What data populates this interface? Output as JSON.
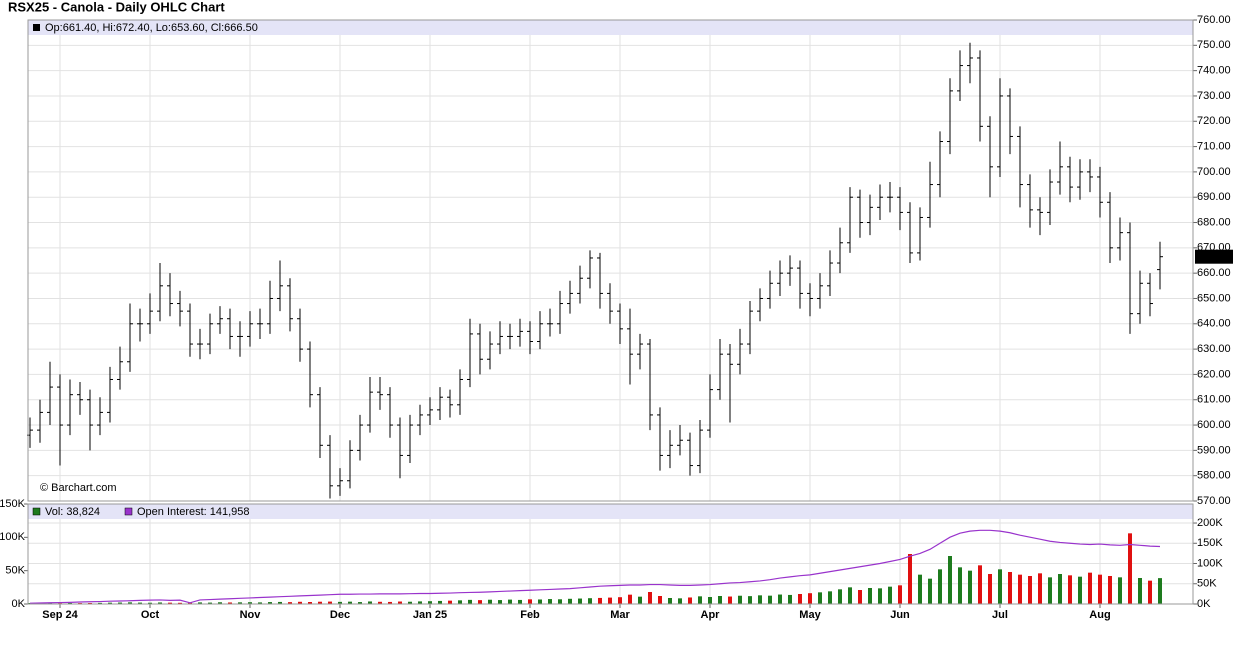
{
  "chart_data": [
    {
      "type": "ohlc",
      "title": "RSX25 - Canola - Daily OHLC Chart",
      "legend_text": "Op:661.40, Hi:672.40, Lo:653.60, Cl:666.50",
      "watermark": "© Barchart.com",
      "last_label": "666.50",
      "color": "#000000",
      "open": [
        596,
        598,
        605,
        615,
        600,
        612,
        610,
        600,
        605,
        618,
        625,
        640,
        640,
        645,
        655,
        648,
        645,
        632,
        632,
        640,
        642,
        635,
        635,
        640,
        640,
        650,
        655,
        642,
        630,
        612,
        592,
        576,
        578,
        590,
        600,
        613,
        612,
        600,
        588,
        600,
        604,
        606,
        611,
        608,
        618,
        636,
        626,
        632,
        635,
        635,
        637,
        633,
        640,
        640,
        648,
        652,
        658,
        666,
        652,
        645,
        638,
        628,
        632,
        604,
        588,
        592,
        594,
        584,
        598,
        614,
        628,
        624,
        632,
        645,
        650,
        656,
        660,
        662,
        652,
        650,
        655,
        664,
        672,
        690,
        680,
        686,
        690,
        690,
        684,
        668,
        682,
        695,
        712,
        732,
        742,
        745,
        718,
        702,
        730,
        714,
        695,
        685,
        684,
        696,
        702,
        694,
        700,
        698,
        688,
        670,
        676,
        644,
        656,
        661.4
      ],
      "high": [
        603,
        610,
        625,
        620,
        618,
        617,
        614,
        611,
        623,
        631,
        648,
        646,
        652,
        664,
        660,
        653,
        648,
        638,
        644,
        647,
        646,
        641,
        645,
        646,
        657,
        665,
        658,
        646,
        633,
        615,
        596,
        583,
        594,
        604,
        619,
        619,
        615,
        603,
        604,
        608,
        611,
        615,
        614,
        622,
        642,
        640,
        637,
        641,
        640,
        642,
        641,
        645,
        646,
        653,
        657,
        663,
        669,
        668,
        656,
        648,
        646,
        636,
        634,
        607,
        598,
        600,
        597,
        602,
        620,
        634,
        632,
        638,
        649,
        654,
        661,
        665,
        667,
        665,
        656,
        660,
        669,
        678,
        694,
        693,
        691,
        695,
        696,
        694,
        688,
        686,
        704,
        716,
        737,
        748,
        751,
        748,
        722,
        737,
        733,
        718,
        699,
        690,
        701,
        712,
        706,
        705,
        705,
        702,
        692,
        682,
        680,
        661,
        660,
        672.4
      ],
      "low": [
        591,
        593,
        600,
        584,
        596,
        604,
        590,
        596,
        601,
        614,
        621,
        633,
        636,
        641,
        643,
        639,
        627,
        626,
        628,
        636,
        630,
        627,
        631,
        634,
        636,
        645,
        637,
        625,
        607,
        587,
        571,
        572,
        575,
        586,
        597,
        606,
        595,
        579,
        585,
        596,
        600,
        602,
        603,
        604,
        615,
        620,
        622,
        628,
        630,
        631,
        628,
        630,
        635,
        636,
        644,
        648,
        654,
        646,
        640,
        632,
        616,
        622,
        598,
        582,
        583,
        588,
        580,
        581,
        595,
        610,
        601,
        620,
        628,
        641,
        646,
        651,
        655,
        646,
        643,
        646,
        651,
        660,
        668,
        674,
        675,
        681,
        684,
        677,
        664,
        665,
        678,
        690,
        707,
        728,
        735,
        712,
        690,
        698,
        707,
        686,
        678,
        675,
        679,
        691,
        688,
        689,
        692,
        682,
        664,
        665,
        636,
        640,
        643,
        653.6
      ],
      "close": [
        598,
        605,
        615,
        600,
        612,
        610,
        600,
        605,
        618,
        625,
        640,
        640,
        645,
        655,
        648,
        645,
        632,
        632,
        640,
        642,
        635,
        635,
        640,
        640,
        650,
        655,
        642,
        630,
        612,
        592,
        576,
        578,
        590,
        600,
        613,
        612,
        600,
        588,
        600,
        604,
        606,
        611,
        608,
        618,
        636,
        626,
        632,
        635,
        635,
        637,
        633,
        640,
        640,
        648,
        652,
        658,
        666,
        652,
        645,
        638,
        628,
        632,
        604,
        588,
        592,
        594,
        584,
        598,
        614,
        628,
        624,
        632,
        645,
        650,
        656,
        660,
        662,
        652,
        650,
        655,
        664,
        672,
        690,
        680,
        686,
        690,
        690,
        684,
        668,
        682,
        695,
        712,
        732,
        742,
        745,
        718,
        702,
        730,
        714,
        695,
        685,
        684,
        696,
        702,
        694,
        700,
        698,
        688,
        670,
        676,
        644,
        656,
        648,
        666.5
      ],
      "ylim": [
        570,
        760
      ],
      "yticks": [
        {
          "value": 570,
          "label": "570.00"
        },
        {
          "value": 580,
          "label": "580.00"
        },
        {
          "value": 590,
          "label": "590.00"
        },
        {
          "value": 600,
          "label": "600.00"
        },
        {
          "value": 610,
          "label": "610.00"
        },
        {
          "value": 620,
          "label": "620.00"
        },
        {
          "value": 630,
          "label": "630.00"
        },
        {
          "value": 640,
          "label": "640.00"
        },
        {
          "value": 650,
          "label": "650.00"
        },
        {
          "value": 660,
          "label": "660.00"
        },
        {
          "value": 670,
          "label": "670.00"
        },
        {
          "value": 680,
          "label": "680.00"
        },
        {
          "value": 690,
          "label": "690.00"
        },
        {
          "value": 700,
          "label": "700.00"
        },
        {
          "value": 710,
          "label": "710.00"
        },
        {
          "value": 720,
          "label": "720.00"
        },
        {
          "value": 730,
          "label": "730.00"
        },
        {
          "value": 740,
          "label": "740.00"
        },
        {
          "value": 750,
          "label": "750.00"
        },
        {
          "value": 760,
          "label": "760.00"
        }
      ],
      "grid": true
    },
    {
      "type": "volume",
      "categories": [
        null,
        null,
        null,
        "Sep 24",
        null,
        null,
        null,
        null,
        null,
        null,
        null,
        null,
        "Oct",
        null,
        null,
        null,
        null,
        null,
        null,
        null,
        null,
        null,
        "Nov",
        null,
        null,
        null,
        null,
        null,
        null,
        null,
        null,
        "Dec",
        null,
        null,
        null,
        null,
        null,
        null,
        null,
        null,
        "Jan 25",
        null,
        null,
        null,
        null,
        null,
        null,
        null,
        null,
        null,
        "Feb",
        null,
        null,
        null,
        null,
        null,
        null,
        null,
        null,
        "Mar",
        null,
        null,
        null,
        null,
        null,
        null,
        null,
        null,
        "Apr",
        null,
        null,
        null,
        null,
        null,
        null,
        null,
        null,
        null,
        "May",
        null,
        null,
        null,
        null,
        null,
        null,
        null,
        null,
        "Jun",
        null,
        null,
        null,
        null,
        null,
        null,
        null,
        null,
        null,
        "Jul",
        null,
        null,
        null,
        null,
        null,
        null,
        null,
        null,
        null,
        "Aug",
        null,
        null,
        null,
        null,
        null,
        null
      ],
      "series": [
        {
          "name": "Vol: 38,824",
          "up_color": "#1e7b1e",
          "down_color": "#e01010",
          "values": [
            1500,
            1200,
            1800,
            1300,
            1600,
            1400,
            1500,
            1700,
            2000,
            2200,
            2500,
            2100,
            1900,
            2300,
            2000,
            1800,
            2200,
            2400,
            2100,
            2600,
            2300,
            2500,
            2700,
            2400,
            2900,
            3100,
            2800,
            3300,
            3000,
            3400,
            3600,
            3200,
            3500,
            2900,
            3800,
            3300,
            3100,
            3700,
            3400,
            3900,
            4200,
            4600,
            5000,
            5500,
            6200,
            5800,
            6400,
            5900,
            6600,
            6100,
            7000,
            6800,
            7400,
            7100,
            7800,
            8200,
            8700,
            9100,
            9600,
            10200,
            14000,
            11000,
            18000,
            12000,
            9000,
            8500,
            9800,
            11500,
            10500,
            12000,
            11200,
            12400,
            11800,
            13000,
            12500,
            14200,
            13600,
            15000,
            16200,
            17500,
            19000,
            22000,
            25000,
            21000,
            24000,
            23500,
            26000,
            28000,
            75000,
            44000,
            38000,
            52000,
            72000,
            55000,
            50000,
            58000,
            45000,
            52000,
            48000,
            44000,
            42000,
            46000,
            40000,
            45000,
            43000,
            41000,
            47000,
            44000,
            42000,
            40000,
            106000,
            39000,
            35000,
            38824
          ]
        },
        {
          "name": "Open Interest: 141,958",
          "color": "#9933cc",
          "axis": "y2",
          "values": [
            2000,
            2500,
            3000,
            3500,
            4000,
            5000,
            5500,
            6000,
            7000,
            7500,
            8000,
            9000,
            9500,
            10000,
            9000,
            9500,
            3000,
            10000,
            11000,
            12000,
            13000,
            14000,
            15000,
            16000,
            17000,
            18000,
            19000,
            20000,
            21000,
            22000,
            23000,
            24000,
            24000,
            24500,
            24500,
            25000,
            25000,
            25000,
            25500,
            26000,
            26000,
            26500,
            27000,
            28000,
            28500,
            29000,
            30000,
            31000,
            32000,
            33000,
            34000,
            35000,
            36000,
            37000,
            38000,
            40000,
            42000,
            44000,
            45000,
            46000,
            47000,
            47000,
            48000,
            48000,
            47000,
            46000,
            46000,
            47000,
            48000,
            50000,
            52000,
            53000,
            55000,
            57000,
            60000,
            64000,
            67000,
            70000,
            72000,
            76000,
            80000,
            84000,
            88000,
            92000,
            96000,
            100000,
            105000,
            110000,
            118000,
            125000,
            135000,
            150000,
            165000,
            175000,
            180000,
            182000,
            182000,
            180000,
            176000,
            170000,
            165000,
            160000,
            155000,
            152000,
            150000,
            148000,
            147000,
            148000,
            146000,
            145000,
            147000,
            145000,
            143000,
            141958
          ]
        }
      ],
      "ylim": [
        0,
        150000
      ],
      "yticks": [
        {
          "value": 0,
          "label": "0K"
        },
        {
          "value": 50000,
          "label": "50K"
        },
        {
          "value": 100000,
          "label": "100K"
        },
        {
          "value": 150000,
          "label": "150K"
        }
      ],
      "y2lim": [
        0,
        247000
      ],
      "y2ticks": [
        {
          "value": 0,
          "label": "0K"
        },
        {
          "value": 50000,
          "label": "50K"
        },
        {
          "value": 100000,
          "label": "100K"
        },
        {
          "value": 150000,
          "label": "150K"
        },
        {
          "value": 200000,
          "label": "200K"
        }
      ],
      "grid": true
    }
  ]
}
